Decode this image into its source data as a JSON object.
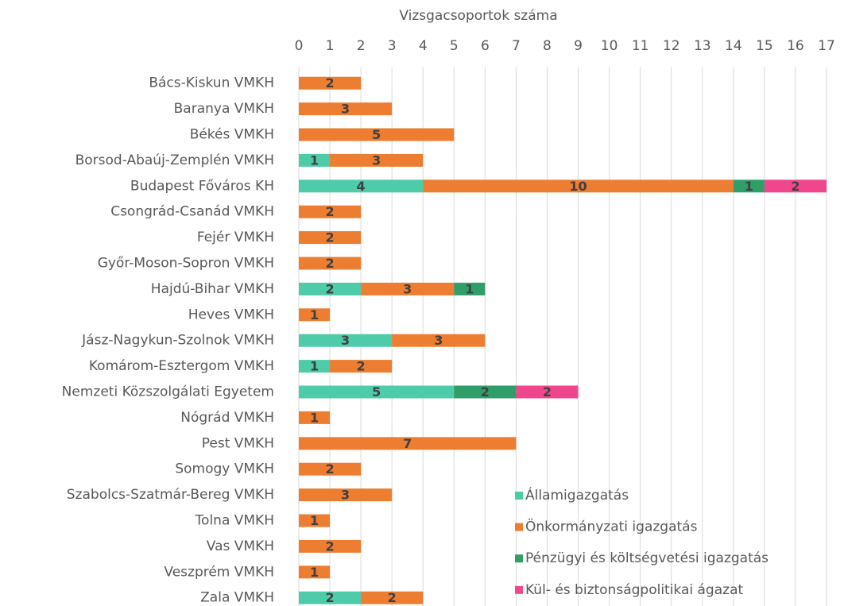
{
  "chart_data": {
    "type": "stacked_bar_horizontal",
    "x_label": "Vizsgacsoportok száma",
    "categories": [
      "Bács-Kiskun VMKH",
      "Baranya VMKH",
      "Békés VMKH",
      "Borsod-Abaúj-Zemplén VMKH",
      "Budapest Főváros KH",
      "Csongrád-Csanád VMKH",
      "Fejér VMKH",
      "Győr-Moson-Sopron VMKH",
      "Hajdú-Bihar VMKH",
      "Heves VMKH",
      "Jász-Nagykun-Szolnok VMKH",
      "Komárom-Esztergom VMKH",
      "Nemzeti Közszolgálati Egyetem",
      "Nógrád VMKH",
      "Pest VMKH",
      "Somogy VMKH",
      "Szabolcs-Szatmár-Bereg VMKH",
      "Tolna VMKH",
      "Vas VMKH",
      "Veszprém VMKH",
      "Zala VMKH"
    ],
    "series": [
      {
        "name": "Államigazgatás",
        "color": "#4ecba9",
        "values": [
          null,
          null,
          null,
          1,
          4,
          null,
          null,
          null,
          2,
          null,
          3,
          1,
          5,
          null,
          null,
          null,
          null,
          null,
          null,
          null,
          2
        ]
      },
      {
        "name": "Önkormányzati igazgatás",
        "color": "#ed7d31",
        "values": [
          2,
          3,
          5,
          3,
          10,
          2,
          2,
          2,
          3,
          1,
          3,
          2,
          null,
          1,
          7,
          2,
          3,
          1,
          2,
          1,
          2
        ]
      },
      {
        "name": "Pénzügyi és költségvetési igazgatás",
        "color": "#2f9e69",
        "values": [
          null,
          null,
          null,
          null,
          1,
          null,
          null,
          null,
          1,
          null,
          null,
          null,
          2,
          null,
          null,
          null,
          null,
          null,
          null,
          null,
          null
        ]
      },
      {
        "name": "Kül- és biztonságpolitikai ágazat",
        "color": "#f0478c",
        "values": [
          null,
          null,
          null,
          null,
          2,
          null,
          null,
          null,
          null,
          null,
          null,
          null,
          2,
          null,
          null,
          null,
          null,
          null,
          null,
          null,
          null
        ]
      }
    ],
    "xlim": [
      0,
      17
    ],
    "xticks": [
      0,
      1,
      2,
      3,
      4,
      5,
      6,
      7,
      8,
      9,
      10,
      11,
      12,
      13,
      14,
      15,
      16,
      17
    ],
    "grid": true,
    "legend": "lower right"
  }
}
